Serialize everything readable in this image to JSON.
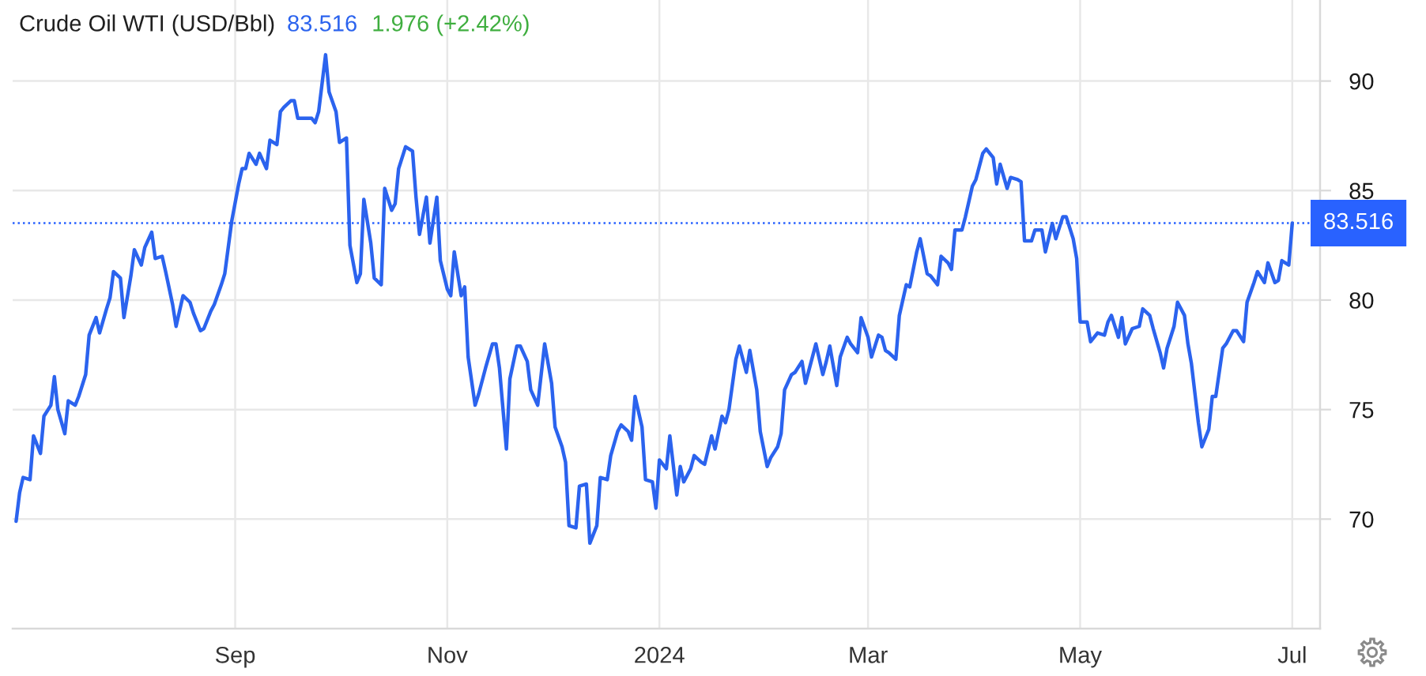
{
  "chart_data": {
    "type": "line",
    "title": "Crude Oil WTI (USD/Bbl)",
    "annotations": [
      "83.516",
      "1.976 (+2.42%)"
    ],
    "x": [
      "2023-06-30",
      "2023-07-01",
      "2023-07-02",
      "2023-07-04",
      "2023-07-05",
      "2023-07-07",
      "2023-07-08",
      "2023-07-10",
      "2023-07-11",
      "2023-07-12",
      "2023-07-14",
      "2023-07-15",
      "2023-07-17",
      "2023-07-18",
      "2023-07-20",
      "2023-07-21",
      "2023-07-23",
      "2023-07-24",
      "2023-07-26",
      "2023-07-27",
      "2023-07-28",
      "2023-07-30",
      "2023-07-31",
      "2023-08-02",
      "2023-08-03",
      "2023-08-05",
      "2023-08-06",
      "2023-08-08",
      "2023-08-09",
      "2023-08-11",
      "2023-08-12",
      "2023-08-14",
      "2023-08-15",
      "2023-08-16",
      "2023-08-17",
      "2023-08-19",
      "2023-08-20",
      "2023-08-22",
      "2023-08-23",
      "2023-08-25",
      "2023-08-26",
      "2023-08-28",
      "2023-08-29",
      "2023-08-31",
      "2023-09-02",
      "2023-09-03",
      "2023-09-04",
      "2023-09-05",
      "2023-09-07",
      "2023-09-08",
      "2023-09-10",
      "2023-09-11",
      "2023-09-13",
      "2023-09-14",
      "2023-09-15",
      "2023-09-17",
      "2023-09-18",
      "2023-09-19",
      "2023-09-21",
      "2023-09-23",
      "2023-09-24",
      "2023-09-25",
      "2023-09-27",
      "2023-09-28",
      "2023-09-30",
      "2023-10-01",
      "2023-10-03",
      "2023-10-04",
      "2023-10-06",
      "2023-10-07",
      "2023-10-08",
      "2023-10-10",
      "2023-10-11",
      "2023-10-13",
      "2023-10-14",
      "2023-10-16",
      "2023-10-17",
      "2023-10-18",
      "2023-10-20",
      "2023-10-22",
      "2023-10-23",
      "2023-10-24",
      "2023-10-26",
      "2023-10-27",
      "2023-10-29",
      "2023-10-30",
      "2023-11-01",
      "2023-11-02",
      "2023-11-03",
      "2023-11-05",
      "2023-11-06",
      "2023-11-07",
      "2023-11-09",
      "2023-11-10",
      "2023-11-12",
      "2023-11-14",
      "2023-11-15",
      "2023-11-16",
      "2023-11-18",
      "2023-11-19",
      "2023-11-21",
      "2023-11-22",
      "2023-11-24",
      "2023-11-25",
      "2023-11-27",
      "2023-11-29",
      "2023-12-01",
      "2023-12-02",
      "2023-12-04",
      "2023-12-05",
      "2023-12-06",
      "2023-12-08",
      "2023-12-09",
      "2023-12-11",
      "2023-12-12",
      "2023-12-14",
      "2023-12-15",
      "2023-12-17",
      "2023-12-18",
      "2023-12-20",
      "2023-12-21",
      "2023-12-23",
      "2023-12-24",
      "2023-12-25",
      "2023-12-27",
      "2023-12-28",
      "2023-12-30",
      "2023-12-31",
      "2024-01-01",
      "2024-01-03",
      "2024-01-04",
      "2024-01-06",
      "2024-01-07",
      "2024-01-08",
      "2024-01-10",
      "2024-01-11",
      "2024-01-13",
      "2024-01-14",
      "2024-01-16",
      "2024-01-17",
      "2024-01-19",
      "2024-01-20",
      "2024-01-21",
      "2024-01-23",
      "2024-01-24",
      "2024-01-26",
      "2024-01-27",
      "2024-01-29",
      "2024-01-30",
      "2024-02-01",
      "2024-02-02",
      "2024-02-04",
      "2024-02-05",
      "2024-02-06",
      "2024-02-08",
      "2024-02-09",
      "2024-02-11",
      "2024-02-12",
      "2024-02-14",
      "2024-02-15",
      "2024-02-17",
      "2024-02-18",
      "2024-02-19",
      "2024-02-21",
      "2024-02-22",
      "2024-02-24",
      "2024-02-25",
      "2024-02-27",
      "2024-02-28",
      "2024-03-01",
      "2024-03-02",
      "2024-03-04",
      "2024-03-05",
      "2024-03-06",
      "2024-03-07",
      "2024-03-09",
      "2024-03-10",
      "2024-03-12",
      "2024-03-13",
      "2024-03-15",
      "2024-03-16",
      "2024-03-18",
      "2024-03-19",
      "2024-03-21",
      "2024-03-22",
      "2024-03-24",
      "2024-03-25",
      "2024-03-26",
      "2024-03-28",
      "2024-03-29",
      "2024-03-31",
      "2024-04-01",
      "2024-04-03",
      "2024-04-04",
      "2024-04-06",
      "2024-04-07",
      "2024-04-08",
      "2024-04-10",
      "2024-04-11",
      "2024-04-13",
      "2024-04-14",
      "2024-04-15",
      "2024-04-17",
      "2024-04-18",
      "2024-04-20",
      "2024-04-21",
      "2024-04-23",
      "2024-04-24",
      "2024-04-26",
      "2024-04-27",
      "2024-04-29",
      "2024-04-30",
      "2024-05-01",
      "2024-05-03",
      "2024-05-04",
      "2024-05-06",
      "2024-05-08",
      "2024-05-09",
      "2024-05-10",
      "2024-05-12",
      "2024-05-13",
      "2024-05-14",
      "2024-05-16",
      "2024-05-18",
      "2024-05-19",
      "2024-05-21",
      "2024-05-22",
      "2024-05-24",
      "2024-05-25",
      "2024-05-26",
      "2024-05-28",
      "2024-05-29",
      "2024-05-31",
      "2024-06-01",
      "2024-06-02",
      "2024-06-04",
      "2024-06-05",
      "2024-06-07",
      "2024-06-08",
      "2024-06-09",
      "2024-06-11",
      "2024-06-12",
      "2024-06-14",
      "2024-06-15",
      "2024-06-17",
      "2024-06-18",
      "2024-06-20",
      "2024-06-21",
      "2024-06-23",
      "2024-06-24",
      "2024-06-26",
      "2024-06-27",
      "2024-06-28",
      "2024-06-30",
      "2024-07-01"
    ],
    "series": [
      {
        "color": "#2b63ee",
        "values": [
          69.9,
          71.2,
          71.9,
          71.8,
          73.8,
          73.0,
          74.7,
          75.2,
          76.5,
          75.0,
          73.9,
          75.4,
          75.2,
          75.6,
          76.6,
          78.4,
          79.2,
          78.5,
          79.6,
          80.1,
          81.3,
          81.0,
          79.2,
          81.1,
          82.3,
          81.6,
          82.4,
          83.1,
          81.9,
          82.0,
          81.3,
          79.8,
          78.8,
          79.5,
          80.2,
          79.9,
          79.4,
          78.6,
          78.7,
          79.5,
          79.8,
          80.7,
          81.2,
          83.6,
          85.3,
          86.0,
          86.0,
          86.7,
          86.2,
          86.7,
          86.0,
          87.3,
          87.1,
          88.6,
          88.8,
          89.1,
          89.1,
          88.3,
          88.3,
          88.3,
          88.1,
          88.6,
          91.2,
          89.5,
          88.6,
          87.2,
          87.4,
          82.5,
          80.8,
          81.2,
          84.6,
          82.6,
          81.0,
          80.7,
          85.1,
          84.1,
          84.4,
          86.0,
          87.0,
          86.8,
          84.7,
          83.0,
          84.7,
          82.6,
          84.7,
          81.8,
          80.5,
          80.2,
          82.2,
          80.2,
          80.6,
          77.4,
          75.2,
          75.7,
          76.9,
          78.0,
          78.0,
          76.9,
          73.2,
          76.4,
          77.9,
          77.9,
          77.2,
          75.9,
          75.2,
          78.0,
          76.2,
          74.2,
          73.3,
          72.6,
          69.7,
          69.6,
          71.5,
          71.6,
          68.9,
          69.7,
          71.9,
          71.8,
          72.9,
          74.0,
          74.3,
          74.0,
          73.6,
          75.6,
          74.2,
          71.8,
          71.7,
          70.5,
          72.7,
          72.3,
          73.8,
          71.1,
          72.4,
          71.7,
          72.3,
          72.9,
          72.6,
          72.5,
          73.8,
          73.2,
          74.7,
          74.4,
          75.0,
          77.3,
          77.9,
          76.7,
          77.7,
          75.9,
          74.0,
          72.4,
          72.8,
          73.3,
          73.9,
          75.9,
          76.6,
          76.7,
          77.2,
          76.2,
          77.4,
          78.0,
          76.6,
          77.2,
          77.9,
          76.1,
          77.4,
          78.3,
          78.0,
          77.6,
          79.2,
          78.3,
          77.4,
          78.4,
          78.3,
          77.7,
          77.6,
          77.3,
          79.3,
          80.7,
          80.6,
          82.2,
          82.8,
          81.2,
          81.1,
          80.7,
          82.0,
          81.7,
          81.4,
          83.2,
          83.2,
          83.8,
          85.2,
          85.5,
          86.7,
          86.9,
          86.5,
          85.3,
          86.2,
          85.1,
          85.6,
          85.5,
          85.4,
          82.7,
          82.7,
          83.2,
          83.2,
          82.2,
          83.5,
          82.8,
          83.8,
          83.8,
          82.8,
          81.9,
          79.0,
          79.0,
          78.1,
          78.5,
          78.4,
          79.0,
          79.3,
          78.3,
          79.2,
          78.0,
          78.7,
          78.8,
          79.6,
          79.3,
          78.7,
          77.6,
          76.9,
          77.8,
          78.8,
          79.9,
          79.3,
          78.0,
          77.1,
          74.4,
          73.3,
          74.1,
          75.6,
          75.6,
          77.8,
          78.0,
          78.6,
          78.6,
          78.1,
          79.9,
          80.8,
          81.3,
          80.8,
          81.7,
          80.8,
          80.9,
          81.8,
          81.6,
          83.516
        ]
      }
    ],
    "xlim": [
      "2023-06-29",
      "2024-07-09"
    ],
    "xticks": [
      {
        "value": "2023-09-01",
        "label": "Sep"
      },
      {
        "value": "2023-11-01",
        "label": "Nov"
      },
      {
        "value": "2024-01-01",
        "label": "2024"
      },
      {
        "value": "2024-03-01",
        "label": "Mar"
      },
      {
        "value": "2024-05-01",
        "label": "May"
      },
      {
        "value": "2024-07-01",
        "label": "Jul"
      }
    ],
    "ylim": [
      65,
      93.7
    ],
    "yticks": [
      70,
      75,
      80,
      85,
      90
    ],
    "ref_lines": [
      {
        "axis": "y",
        "value": 83.516,
        "label": "83.516",
        "color": "#2962ff",
        "line_style": "dotted"
      }
    ],
    "grid": true
  }
}
